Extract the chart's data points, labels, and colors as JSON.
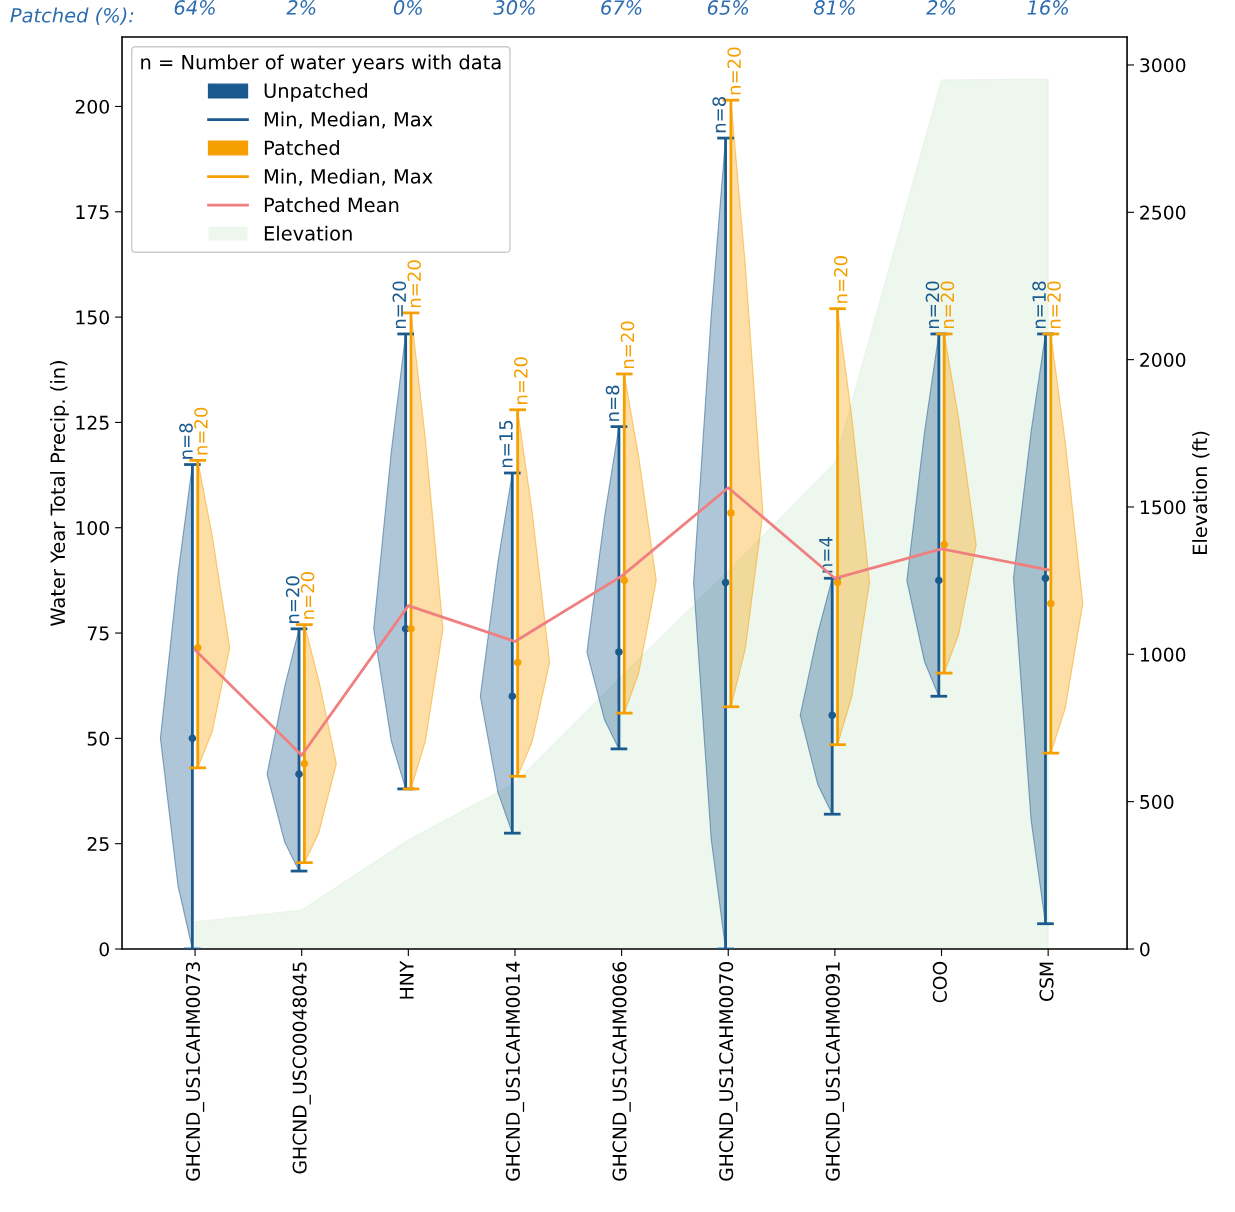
{
  "chart_data": {
    "type": "scatter",
    "categories": [
      "GHCND_US1CAHM0073",
      "GHCND_USC00048045",
      "HNY",
      "GHCND_US1CAHM0014",
      "GHCND_US1CAHM0066",
      "GHCND_US1CAHM0070",
      "GHCND_US1CAHM0091",
      "COO",
      "CSM"
    ],
    "ylabel": "Water Year Total Precip. (in)",
    "y2label": "Elevation (ft)",
    "legend_title": "n = Number of water years with data",
    "ylim": [
      0,
      216.5
    ],
    "yticks": [
      0,
      25,
      50,
      75,
      100,
      125,
      150,
      175,
      200
    ],
    "y2lim": [
      0,
      3095
    ],
    "y2ticks": [
      0,
      500,
      1000,
      1500,
      2000,
      2500,
      3000
    ],
    "grid": false,
    "legend": "top left",
    "series": [
      {
        "name": "Unpatched",
        "color": "#1a5a8e",
        "values": [
          50,
          41.5,
          76,
          60,
          70.5,
          87,
          55.5,
          87.5,
          88
        ],
        "errors": [
          [
            0,
            115
          ],
          [
            18.5,
            76
          ],
          [
            38,
            146
          ],
          [
            27.5,
            113
          ],
          [
            47.5,
            124
          ],
          [
            0,
            192.5
          ],
          [
            32,
            88
          ],
          [
            60,
            146
          ],
          [
            6,
            146
          ]
        ]
      },
      {
        "name": "Patched",
        "color": "#f5a000",
        "values": [
          71.5,
          44,
          76,
          68,
          87.5,
          103.5,
          87,
          96,
          82
        ],
        "errors": [
          [
            43,
            116
          ],
          [
            20.5,
            77
          ],
          [
            38,
            151
          ],
          [
            41,
            128
          ],
          [
            56,
            136.5
          ],
          [
            57.5,
            201.5
          ],
          [
            48.5,
            152
          ],
          [
            65.5,
            146
          ],
          [
            46.5,
            146
          ]
        ]
      },
      {
        "name": "Patched Mean",
        "type": "line",
        "color": "#f08080",
        "values": [
          71,
          46,
          81.5,
          73,
          88.5,
          109.5,
          88,
          95,
          90
        ]
      },
      {
        "name": "Elevation",
        "type": "area",
        "axis": "y2",
        "color": "#e3f1e3",
        "values": [
          92,
          132,
          370,
          563,
          926,
          1283,
          1649,
          2949,
          2952
        ]
      }
    ],
    "annotations": [
      "Patched (%):",
      "64%",
      "2%",
      "0%",
      "30%",
      "67%",
      "65%",
      "81%",
      "2%",
      "16%",
      "Min, Median, Max",
      "Min, Median, Max",
      {
        "text": "n=8",
        "x": "GHCND_US1CAHM0073",
        "y": 115
      },
      {
        "text": "n=20",
        "x": "GHCND_USC00048045",
        "y": 76
      },
      {
        "text": "n=20",
        "x": "HNY",
        "y": 146
      },
      {
        "text": "n=15",
        "x": "GHCND_US1CAHM0014",
        "y": 113
      },
      {
        "text": "n=8",
        "x": "GHCND_US1CAHM0066",
        "y": 124
      },
      {
        "text": "n=8",
        "x": "GHCND_US1CAHM0070",
        "y": 192.5
      },
      {
        "text": "n=4",
        "x": "GHCND_US1CAHM0091",
        "y": 88
      },
      {
        "text": "n=20",
        "x": "COO",
        "y": 146
      },
      {
        "text": "n=18",
        "x": "CSM",
        "y": 146
      },
      {
        "text": "n=20",
        "x": "GHCND_US1CAHM0073",
        "y": 116
      },
      {
        "text": "n=20",
        "x": "GHCND_USC00048045",
        "y": 77
      },
      {
        "text": "n=20",
        "x": "HNY",
        "y": 151
      },
      {
        "text": "n=20",
        "x": "GHCND_US1CAHM0014",
        "y": 128
      },
      {
        "text": "n=20",
        "x": "GHCND_US1CAHM0066",
        "y": 136.5
      },
      {
        "text": "n=20",
        "x": "GHCND_US1CAHM0070",
        "y": 201.5
      },
      {
        "text": "n=20",
        "x": "GHCND_US1CAHM0091",
        "y": 152
      },
      {
        "text": "n=20",
        "x": "COO",
        "y": 146
      },
      {
        "text": "n=20",
        "x": "CSM",
        "y": 146
      }
    ]
  }
}
